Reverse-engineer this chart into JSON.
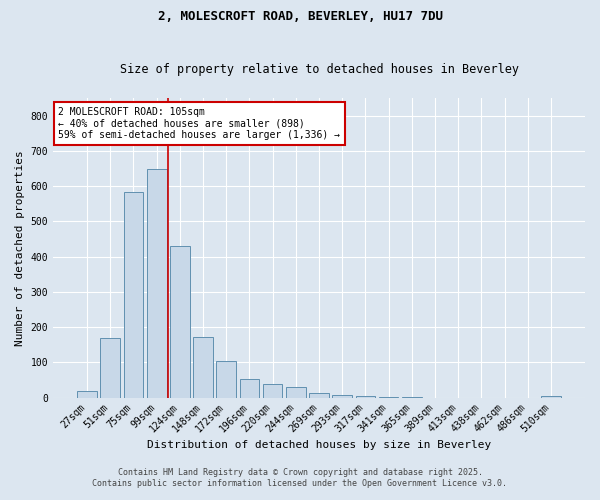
{
  "title1": "2, MOLESCROFT ROAD, BEVERLEY, HU17 7DU",
  "title2": "Size of property relative to detached houses in Beverley",
  "xlabel": "Distribution of detached houses by size in Beverley",
  "ylabel": "Number of detached properties",
  "categories": [
    "27sqm",
    "51sqm",
    "75sqm",
    "99sqm",
    "124sqm",
    "148sqm",
    "172sqm",
    "196sqm",
    "220sqm",
    "244sqm",
    "269sqm",
    "293sqm",
    "317sqm",
    "341sqm",
    "365sqm",
    "389sqm",
    "413sqm",
    "438sqm",
    "462sqm",
    "486sqm",
    "510sqm"
  ],
  "values": [
    18,
    168,
    582,
    648,
    430,
    172,
    103,
    53,
    38,
    30,
    13,
    8,
    5,
    3,
    2,
    0,
    0,
    0,
    0,
    0,
    5
  ],
  "bar_color": "#c8d8e8",
  "bar_edge_color": "#6090b0",
  "vline_x": 3.5,
  "vline_color": "#cc0000",
  "annotation_text": "2 MOLESCROFT ROAD: 105sqm\n← 40% of detached houses are smaller (898)\n59% of semi-detached houses are larger (1,336) →",
  "annotation_box_color": "#ffffff",
  "annotation_box_edge": "#cc0000",
  "ylim": [
    0,
    850
  ],
  "yticks": [
    0,
    100,
    200,
    300,
    400,
    500,
    600,
    700,
    800
  ],
  "background_color": "#dce6f0",
  "plot_bg_color": "#dce6f0",
  "footer1": "Contains HM Land Registry data © Crown copyright and database right 2025.",
  "footer2": "Contains public sector information licensed under the Open Government Licence v3.0.",
  "title_fontsize": 9,
  "subtitle_fontsize": 8.5,
  "xlabel_fontsize": 8,
  "ylabel_fontsize": 8,
  "tick_fontsize": 7,
  "annotation_fontsize": 7,
  "footer_fontsize": 6
}
